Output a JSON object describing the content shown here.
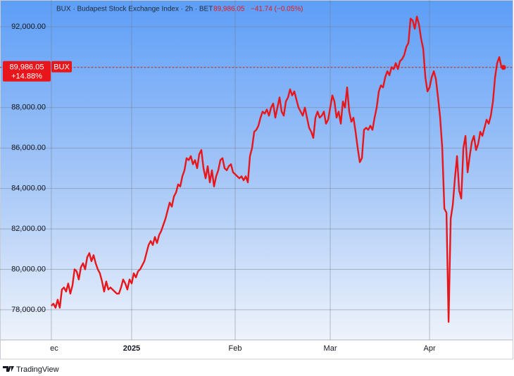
{
  "chart_data": {
    "type": "line",
    "title": "BUX · Budapest Stock Exchange Index · 2h · BET",
    "header_price": "89,986.05",
    "header_change": "−41.74 (−0.05%)",
    "price_tag": {
      "label": "89,986.05",
      "name": "BUX",
      "change": "+14.88%"
    },
    "footer": "TradingView",
    "series": [
      {
        "name": "BUX",
        "color": "#e8161b",
        "values": [
          78200,
          78300,
          78100,
          78500,
          78100,
          79000,
          79100,
          78900,
          79300,
          78800,
          79200,
          80000,
          79900,
          79500,
          80100,
          80300,
          80000,
          80600,
          80800,
          80400,
          80700,
          80300,
          80000,
          79800,
          79400,
          78900,
          79400,
          79000,
          79100,
          79000,
          78900,
          78800,
          78800,
          79100,
          79500,
          79300,
          79000,
          79500,
          79300,
          79800,
          79600,
          79900,
          80000,
          80200,
          80400,
          80800,
          81200,
          81400,
          81200,
          81600,
          81300,
          81700,
          81900,
          82200,
          82500,
          82900,
          83300,
          83100,
          83600,
          83800,
          84200,
          84100,
          84600,
          84900,
          85500,
          85400,
          85600,
          85200,
          85400,
          85000,
          85700,
          85900,
          85000,
          84500,
          85100,
          84300,
          84900,
          84100,
          84600,
          84900,
          85400,
          85500,
          85000,
          84900,
          85100,
          85200,
          84800,
          84700,
          84600,
          84500,
          84600,
          84400,
          84600,
          84300,
          85600,
          86000,
          86800,
          86900,
          87100,
          87500,
          87800,
          87700,
          87900,
          87600,
          88000,
          88200,
          87500,
          88000,
          88500,
          87800,
          87600,
          88300,
          88500,
          88900,
          88600,
          88800,
          88400,
          88000,
          87800,
          87600,
          88000,
          87500,
          87000,
          86800,
          86500,
          87500,
          87800,
          87500,
          87600,
          87800,
          87200,
          87400,
          88000,
          88600,
          88300,
          87500,
          87800,
          87200,
          88300,
          88000,
          89000,
          87800,
          87300,
          87500,
          86800,
          86000,
          85300,
          85500,
          86900,
          87000,
          86900,
          87100,
          86900,
          87500,
          88000,
          88800,
          89100,
          89000,
          89500,
          89800,
          89600,
          90000,
          89900,
          90200,
          89900,
          90300,
          90400,
          90600,
          91000,
          91200,
          92400,
          92300,
          91900,
          92500,
          92100,
          91400,
          90900,
          89500,
          88800,
          89000,
          89500,
          89800,
          89400,
          88500,
          87500,
          86000,
          83000,
          82800,
          77400,
          82500,
          83200,
          84500,
          85600,
          83900,
          83500,
          86000,
          86600,
          84800,
          85600,
          86300,
          86600,
          85900,
          86200,
          86800,
          86600,
          87000,
          87400,
          87200,
          87600,
          88300,
          89500,
          90200,
          90500,
          90000,
          89986.05
        ]
      }
    ],
    "ylim": [
      76500,
      93320
    ],
    "yticks": [
      {
        "value": 78000,
        "label": "78,000.00"
      },
      {
        "value": 80000,
        "label": "80,000.00"
      },
      {
        "value": 82000,
        "label": "82,000.00"
      },
      {
        "value": 84000,
        "label": "84,000.00"
      },
      {
        "value": 86000,
        "label": "86,000.00"
      },
      {
        "value": 88000,
        "label": "88,000.00"
      },
      {
        "value": 90000,
        "label": "90,000.00"
      },
      {
        "value": 92000,
        "label": "92,000.00"
      }
    ],
    "xlim": [
      -24.3,
      218.3
    ],
    "xticks": [
      {
        "value": 0,
        "label": "ec"
      },
      {
        "value": 38,
        "label": "2025"
      },
      {
        "value": 87,
        "label": "Feb"
      },
      {
        "value": 132,
        "label": "Mar"
      },
      {
        "value": 179,
        "label": "Apr"
      }
    ],
    "grid": true
  }
}
